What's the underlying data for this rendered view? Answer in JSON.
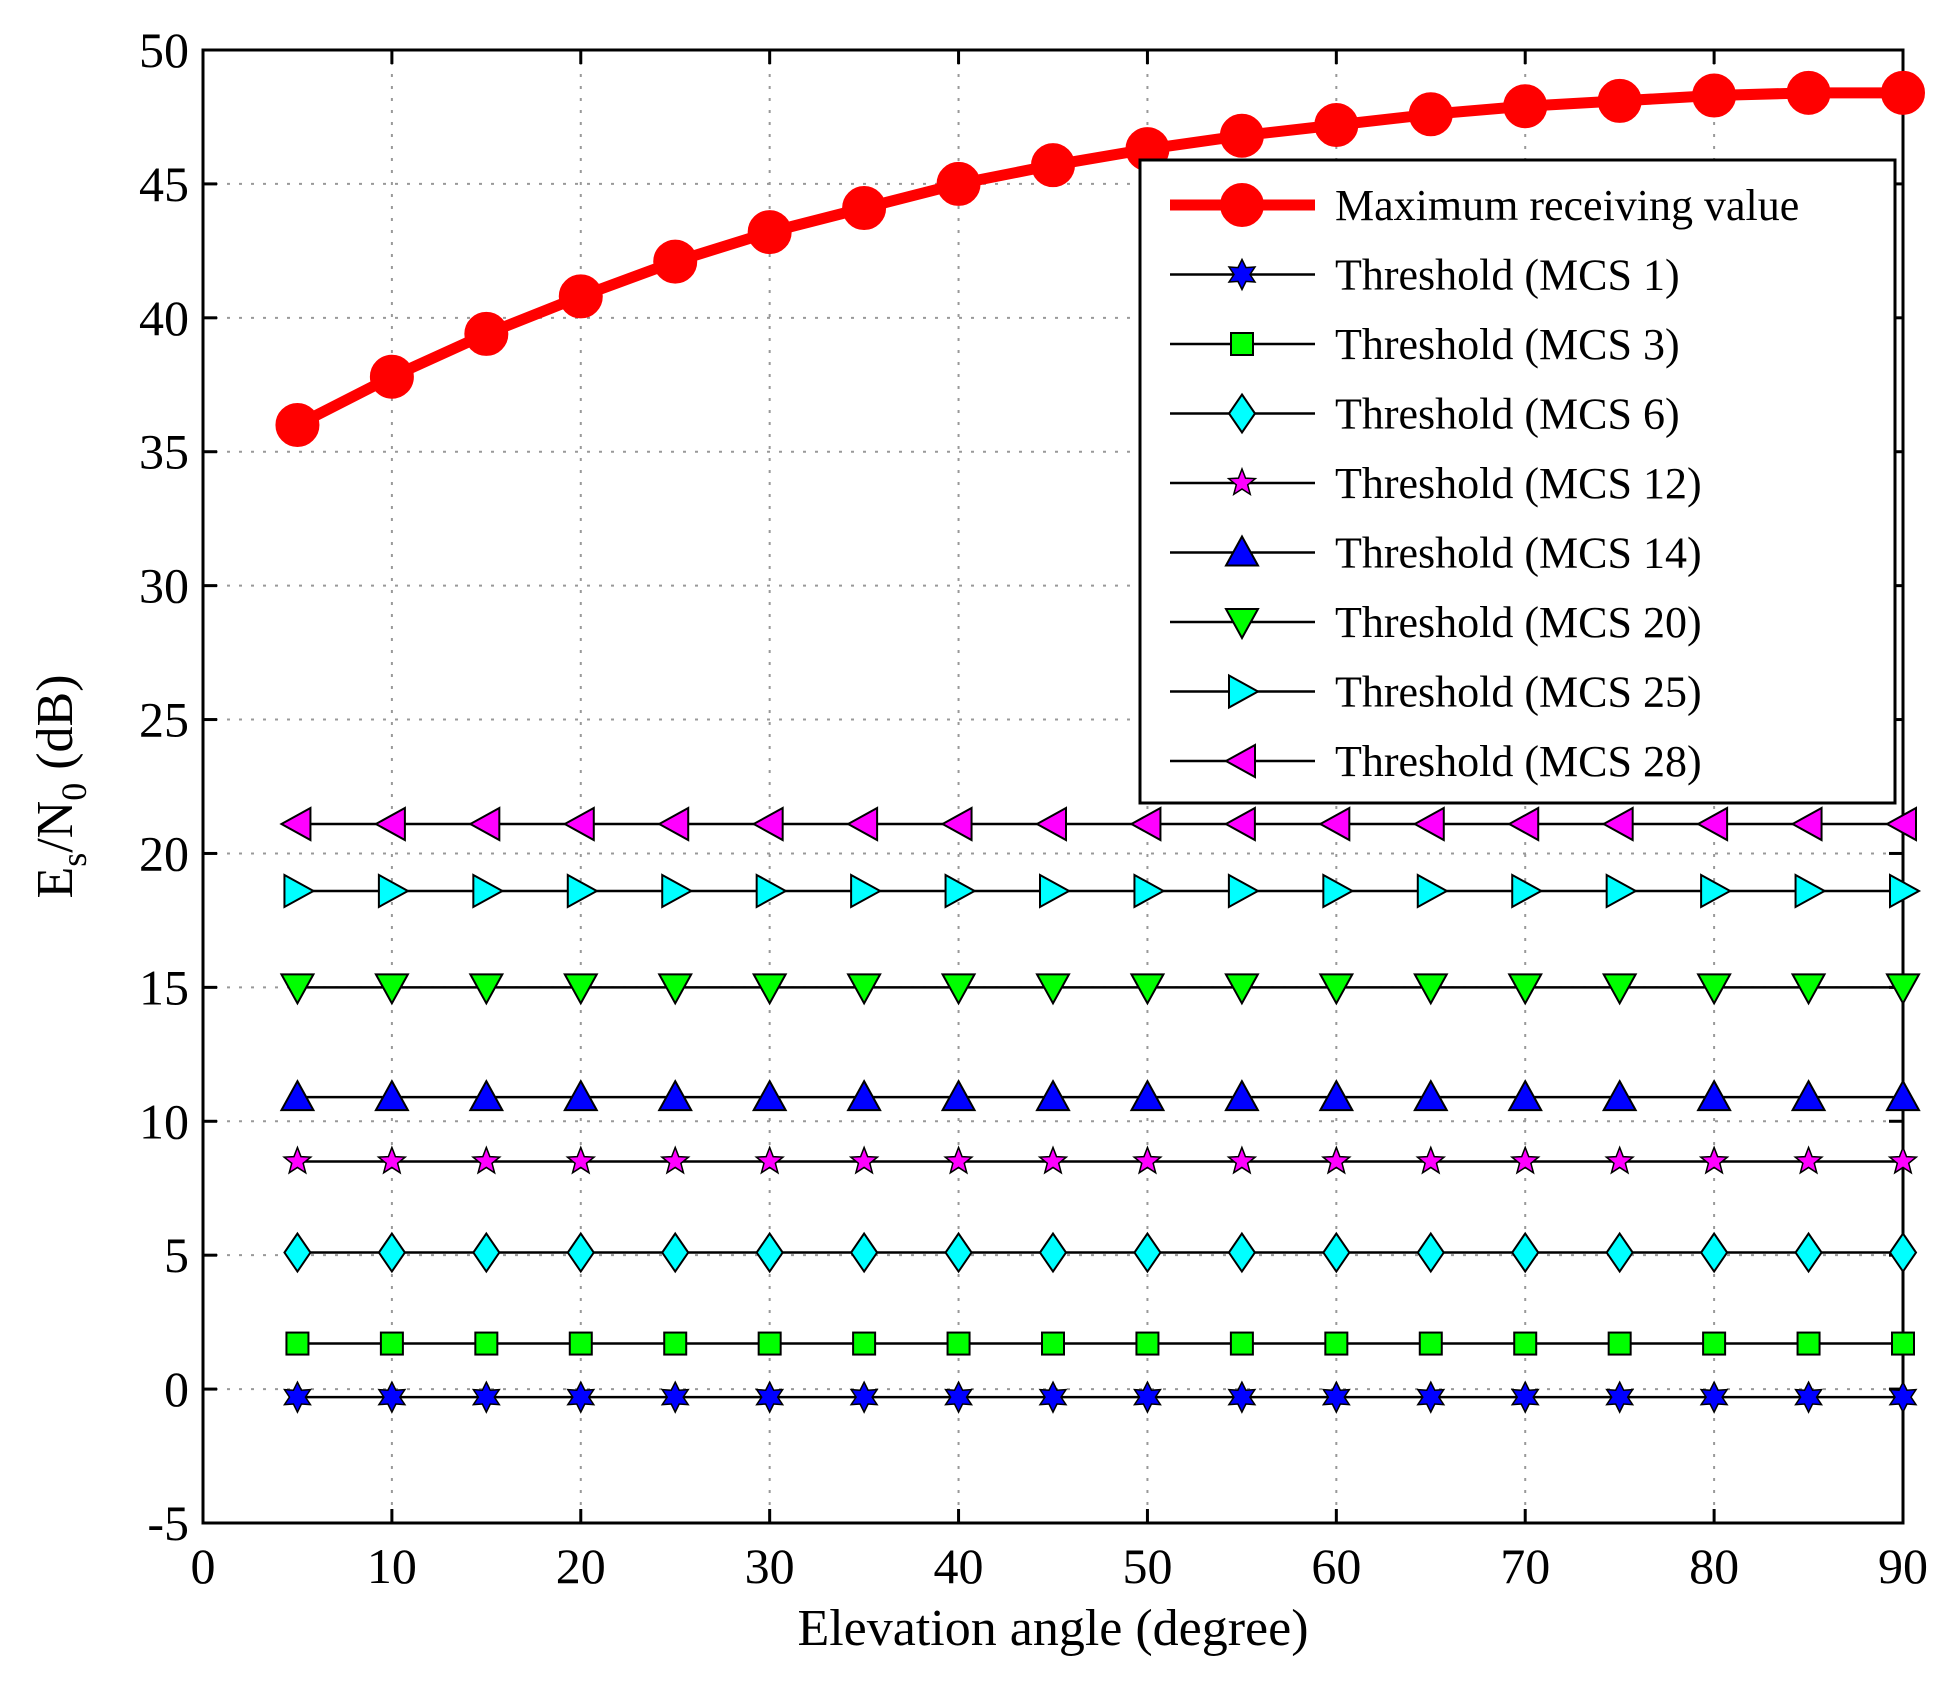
{
  "chart_data": {
    "type": "line",
    "title": "",
    "xlabel": "Elevation angle (degree)",
    "ylabel": {
      "main": "E",
      "sub1": "s",
      "mid": "/N",
      "sub2": "0",
      "unit": " (dB)"
    },
    "xlim": [
      0,
      90
    ],
    "ylim": [
      -5,
      50
    ],
    "xticks": [
      0,
      10,
      20,
      30,
      40,
      50,
      60,
      70,
      80,
      90
    ],
    "yticks": [
      -5,
      0,
      5,
      10,
      15,
      20,
      25,
      30,
      35,
      40,
      45,
      50
    ],
    "grid": true,
    "legend_position": "top-right",
    "x": [
      5,
      10,
      15,
      20,
      25,
      30,
      35,
      40,
      45,
      50,
      55,
      60,
      65,
      70,
      75,
      80,
      85,
      90
    ],
    "series": [
      {
        "name": "Maximum receiving value",
        "marker": "circle",
        "line_color": "#ff0000",
        "marker_fill": "#ff0000",
        "values": [
          36.0,
          37.8,
          39.4,
          40.8,
          42.1,
          43.2,
          44.1,
          45.0,
          45.7,
          46.3,
          46.8,
          47.2,
          47.6,
          47.9,
          48.1,
          48.3,
          48.4,
          48.4
        ]
      },
      {
        "name": "Threshold (MCS 1)",
        "marker": "hexagram",
        "line_color": "#000000",
        "marker_fill": "#0000ff",
        "values": [
          -0.3,
          -0.3,
          -0.3,
          -0.3,
          -0.3,
          -0.3,
          -0.3,
          -0.3,
          -0.3,
          -0.3,
          -0.3,
          -0.3,
          -0.3,
          -0.3,
          -0.3,
          -0.3,
          -0.3,
          -0.3
        ]
      },
      {
        "name": "Threshold (MCS 3)",
        "marker": "square",
        "line_color": "#000000",
        "marker_fill": "#00ff00",
        "values": [
          1.7,
          1.7,
          1.7,
          1.7,
          1.7,
          1.7,
          1.7,
          1.7,
          1.7,
          1.7,
          1.7,
          1.7,
          1.7,
          1.7,
          1.7,
          1.7,
          1.7,
          1.7
        ]
      },
      {
        "name": "Threshold (MCS 6)",
        "marker": "diamond",
        "line_color": "#000000",
        "marker_fill": "#00ffff",
        "values": [
          5.1,
          5.1,
          5.1,
          5.1,
          5.1,
          5.1,
          5.1,
          5.1,
          5.1,
          5.1,
          5.1,
          5.1,
          5.1,
          5.1,
          5.1,
          5.1,
          5.1,
          5.1
        ]
      },
      {
        "name": "Threshold (MCS 12)",
        "marker": "pentagram",
        "line_color": "#000000",
        "marker_fill": "#ff00ff",
        "values": [
          8.5,
          8.5,
          8.5,
          8.5,
          8.5,
          8.5,
          8.5,
          8.5,
          8.5,
          8.5,
          8.5,
          8.5,
          8.5,
          8.5,
          8.5,
          8.5,
          8.5,
          8.5
        ]
      },
      {
        "name": "Threshold (MCS 14)",
        "marker": "triangle-up",
        "line_color": "#000000",
        "marker_fill": "#0000ff",
        "values": [
          10.9,
          10.9,
          10.9,
          10.9,
          10.9,
          10.9,
          10.9,
          10.9,
          10.9,
          10.9,
          10.9,
          10.9,
          10.9,
          10.9,
          10.9,
          10.9,
          10.9,
          10.9
        ]
      },
      {
        "name": "Threshold (MCS 20)",
        "marker": "triangle-down",
        "line_color": "#000000",
        "marker_fill": "#00ff00",
        "values": [
          15.0,
          15.0,
          15.0,
          15.0,
          15.0,
          15.0,
          15.0,
          15.0,
          15.0,
          15.0,
          15.0,
          15.0,
          15.0,
          15.0,
          15.0,
          15.0,
          15.0,
          15.0
        ]
      },
      {
        "name": "Threshold (MCS 25)",
        "marker": "triangle-right",
        "line_color": "#000000",
        "marker_fill": "#00ffff",
        "values": [
          18.6,
          18.6,
          18.6,
          18.6,
          18.6,
          18.6,
          18.6,
          18.6,
          18.6,
          18.6,
          18.6,
          18.6,
          18.6,
          18.6,
          18.6,
          18.6,
          18.6,
          18.6
        ]
      },
      {
        "name": "Threshold (MCS 28)",
        "marker": "triangle-left",
        "line_color": "#000000",
        "marker_fill": "#ff00ff",
        "values": [
          21.1,
          21.1,
          21.1,
          21.1,
          21.1,
          21.1,
          21.1,
          21.1,
          21.1,
          21.1,
          21.1,
          21.1,
          21.1,
          21.1,
          21.1,
          21.1,
          21.1,
          21.1
        ]
      }
    ]
  }
}
